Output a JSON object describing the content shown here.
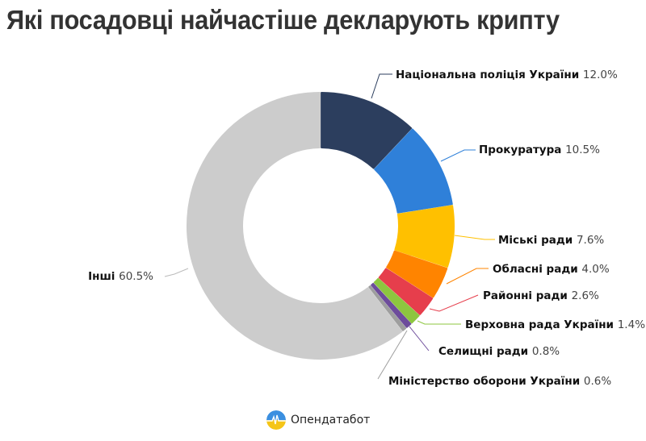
{
  "title": "Які посадовці найчастіше декларують крипту",
  "brand": {
    "name": "Опендатабот",
    "icon": "opendatabot-logo-icon"
  },
  "chart_data": {
    "type": "pie",
    "subtype": "donut",
    "title": "Які посадовці найчастіше декларують крипту",
    "center": [
      397,
      280
    ],
    "outer_radius": 165,
    "inner_radius": 97,
    "start_angle_deg": 0,
    "direction": "clockwise",
    "slices": [
      {
        "label": "Національна поліція України",
        "value": 12.0,
        "pct": "12.0%",
        "color": "#2c3e5e",
        "label_pos": [
          490,
          97
        ],
        "anchor": "start",
        "line": [
          [
            460,
            122
          ],
          [
            470,
            92
          ],
          [
            486,
            92
          ]
        ]
      },
      {
        "label": "Прокуратура",
        "value": 10.5,
        "pct": "10.5%",
        "color": "#2f80d9",
        "label_pos": [
          593,
          190
        ],
        "anchor": "start",
        "line": [
          [
            546,
            200
          ],
          [
            575,
            186
          ],
          [
            589,
            186
          ]
        ]
      },
      {
        "label": "Міські ради",
        "value": 7.6,
        "pct": "7.6%",
        "color": "#ffc000",
        "label_pos": [
          617,
          302
        ],
        "anchor": "start",
        "line": [
          [
            563,
            292
          ],
          [
            600,
            297
          ],
          [
            613,
            297
          ]
        ]
      },
      {
        "label": "Обласні ради",
        "value": 4.0,
        "pct": "4.0%",
        "color": "#ff8400",
        "label_pos": [
          610,
          338
        ],
        "anchor": "start",
        "line": [
          [
            553,
            352
          ],
          [
            590,
            333
          ],
          [
            605,
            333
          ]
        ]
      },
      {
        "label": "Районні ради",
        "value": 2.6,
        "pct": "2.6%",
        "color": "#e63e4c",
        "label_pos": [
          598,
          371
        ],
        "anchor": "start",
        "line": [
          [
            532,
            383
          ],
          [
            544,
            386
          ],
          [
            592,
            366
          ]
        ]
      },
      {
        "label": "Верховна рада України",
        "value": 1.4,
        "pct": "1.4%",
        "color": "#8dc63f",
        "label_pos": [
          576,
          407
        ],
        "anchor": "start",
        "line": [
          [
            517,
            398
          ],
          [
            526,
            402
          ],
          [
            571,
            402
          ]
        ]
      },
      {
        "label": "Селищні ради",
        "value": 0.8,
        "pct": "0.8%",
        "color": "#6d4c9b",
        "label_pos": [
          543,
          440
        ],
        "anchor": "start",
        "line": [
          [
            507,
            405
          ],
          [
            531,
            435
          ]
        ]
      },
      {
        "label": "Міністерство оборони України",
        "value": 0.6,
        "pct": "0.6%",
        "color": "#9e9e9e",
        "label_pos": [
          481,
          477
        ],
        "anchor": "start",
        "line": [
          [
            504,
            410
          ],
          [
            468,
            470
          ]
        ]
      },
      {
        "label": "Інші",
        "value": 60.5,
        "pct": "60.5%",
        "color": "#cccccc",
        "label_pos": [
          190,
          347
        ],
        "anchor": "end",
        "line": [
          [
            233,
            333
          ],
          [
            216,
            340
          ],
          [
            204,
            343
          ]
        ]
      }
    ],
    "legend": "none (direct labels)"
  }
}
